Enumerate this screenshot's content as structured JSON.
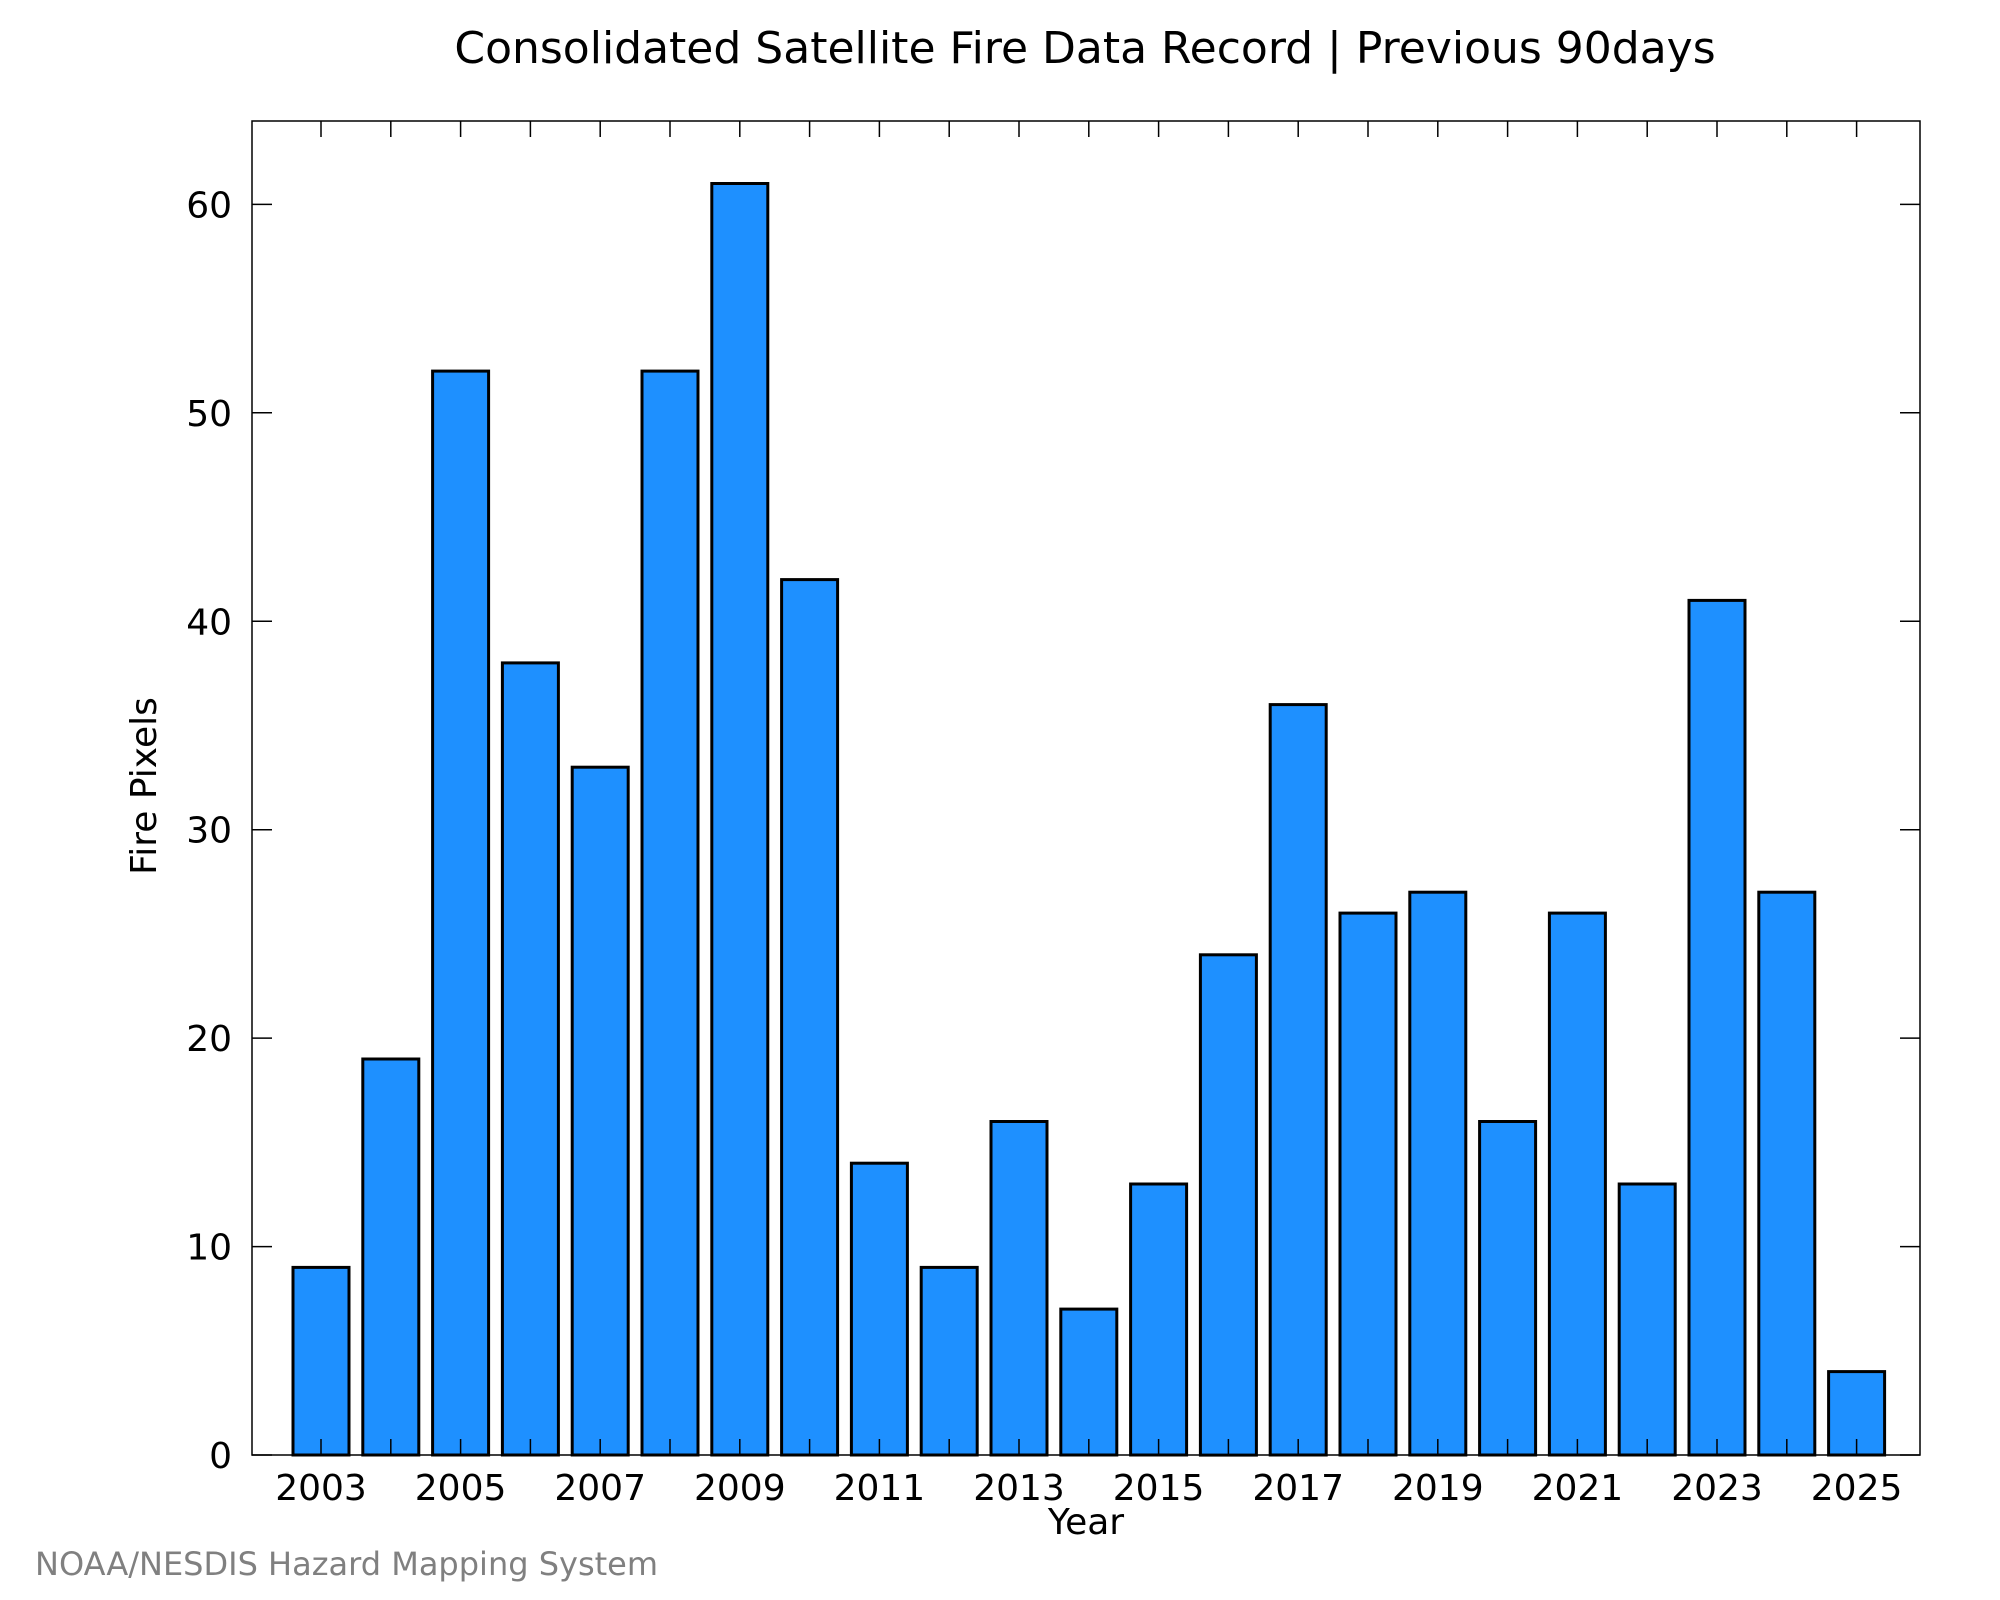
{
  "chart_data": {
    "type": "bar",
    "title": "Consolidated Satellite Fire Data Record | Previous 90days",
    "xlabel": "Year",
    "ylabel": "Fire Pixels",
    "categories": [
      "2003",
      "2004",
      "2005",
      "2006",
      "2007",
      "2008",
      "2009",
      "2010",
      "2011",
      "2012",
      "2013",
      "2014",
      "2015",
      "2016",
      "2017",
      "2018",
      "2019",
      "2020",
      "2021",
      "2022",
      "2023",
      "2024",
      "2025"
    ],
    "values": [
      9,
      19,
      52,
      38,
      33,
      52,
      61,
      42,
      14,
      9,
      16,
      7,
      13,
      24,
      36,
      26,
      27,
      16,
      26,
      13,
      41,
      27,
      4
    ],
    "x_tick_labels": [
      "2003",
      "2005",
      "2007",
      "2009",
      "2011",
      "2013",
      "2015",
      "2017",
      "2019",
      "2021",
      "2023",
      "2025"
    ],
    "y_tick_labels": [
      "0",
      "10",
      "20",
      "30",
      "40",
      "50",
      "60"
    ],
    "ylim": [
      0,
      64
    ],
    "grid": false,
    "bar_color": "#1e90ff",
    "bar_edge_color": "#000000"
  },
  "credit": "NOAA/NESDIS Hazard Mapping System"
}
